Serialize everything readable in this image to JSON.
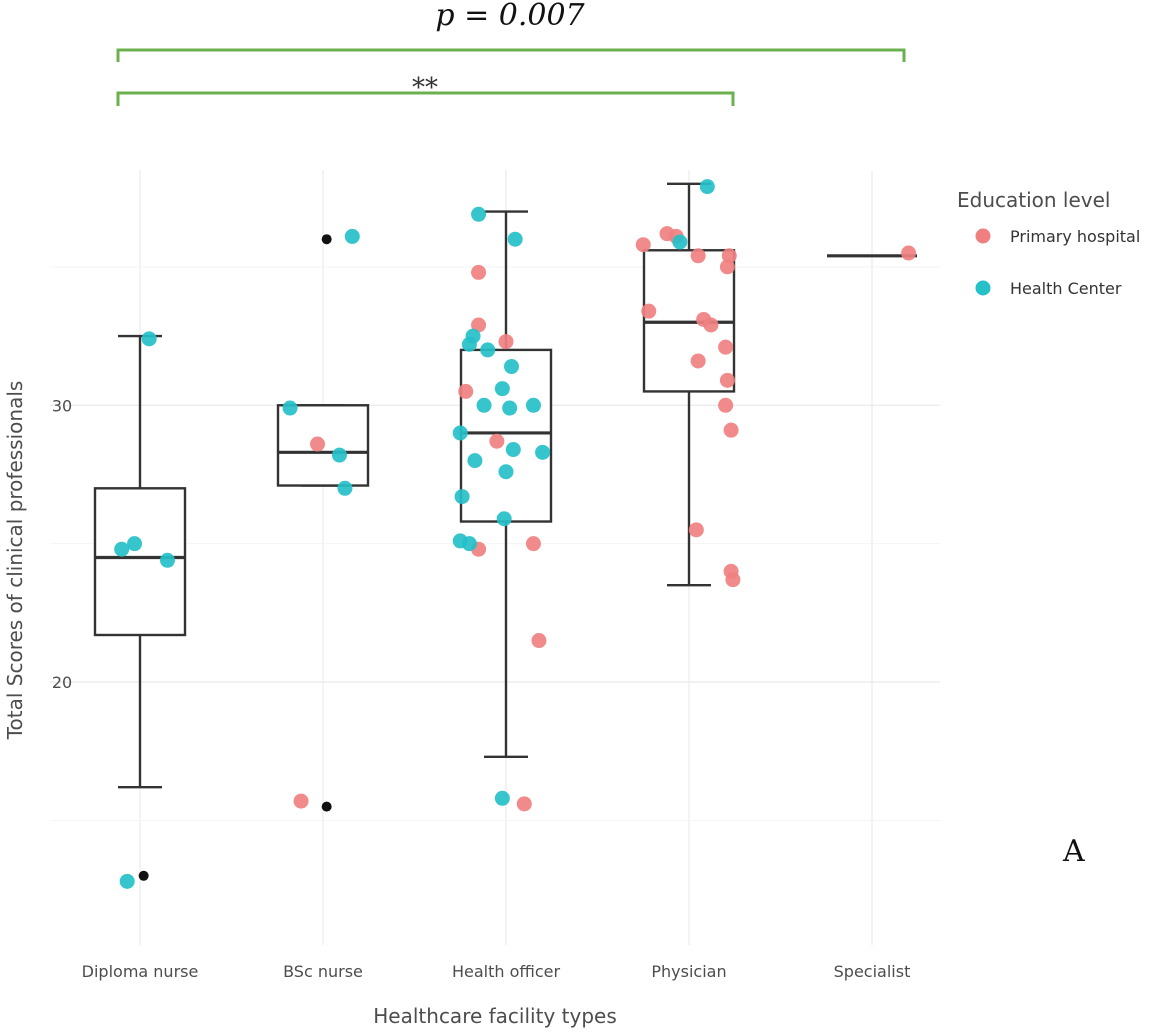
{
  "chart_data": {
    "type": "box",
    "title": "",
    "xlabel": "Healthcare facility types",
    "ylabel": "Total Scores of clinical professionals",
    "categories": [
      "Diploma nurse",
      "BSc nurse",
      "Health officer",
      "Physician",
      "Specialist"
    ],
    "ylim": [
      10.5,
      38.5
    ],
    "yticks": [
      20,
      30
    ],
    "grid": true,
    "legend": {
      "title": "Education level",
      "position": "right",
      "entries": [
        {
          "name": "Primary hospital",
          "color": "#f08080"
        },
        {
          "name": "Health Center",
          "color": "#25c0c8"
        }
      ]
    },
    "boxes": [
      {
        "category": "Diploma nurse",
        "min": 16.2,
        "q1": 21.7,
        "median": 24.5,
        "q3": 27.0,
        "max": 32.5
      },
      {
        "category": "BSc nurse",
        "min": 27.1,
        "q1": 27.1,
        "median": 28.3,
        "q3": 30.0,
        "max": 30.0
      },
      {
        "category": "Health officer",
        "min": 17.3,
        "q1": 25.8,
        "median": 29.0,
        "q3": 32.0,
        "max": 37.0
      },
      {
        "category": "Physician",
        "min": 23.5,
        "q1": 30.5,
        "median": 33.0,
        "q3": 35.6,
        "max": 38.0
      },
      {
        "category": "Specialist",
        "min": 35.4,
        "q1": 35.4,
        "median": 35.4,
        "q3": 35.4,
        "max": 35.4
      }
    ],
    "outliers": [
      {
        "category": "Diploma nurse",
        "y": 13.0
      },
      {
        "category": "BSc nurse",
        "y": 36.0
      },
      {
        "category": "BSc nurse",
        "y": 15.5
      }
    ],
    "series": [
      {
        "name": "Primary hospital",
        "color": "#f08080",
        "points": [
          {
            "category": "BSc nurse",
            "jitter": -0.03,
            "y": 28.6
          },
          {
            "category": "BSc nurse",
            "jitter": -0.12,
            "y": 15.7
          },
          {
            "category": "Health officer",
            "jitter": -0.15,
            "y": 34.8
          },
          {
            "category": "Health officer",
            "jitter": -0.15,
            "y": 32.9
          },
          {
            "category": "Health officer",
            "jitter": 0.0,
            "y": 32.3
          },
          {
            "category": "Health officer",
            "jitter": -0.22,
            "y": 30.5
          },
          {
            "category": "Health officer",
            "jitter": -0.05,
            "y": 28.7
          },
          {
            "category": "Health officer",
            "jitter": 0.15,
            "y": 25.0
          },
          {
            "category": "Health officer",
            "jitter": -0.15,
            "y": 24.8
          },
          {
            "category": "Health officer",
            "jitter": 0.18,
            "y": 21.5
          },
          {
            "category": "Health officer",
            "jitter": 0.1,
            "y": 15.6
          },
          {
            "category": "Physician",
            "jitter": -0.25,
            "y": 35.8
          },
          {
            "category": "Physician",
            "jitter": -0.12,
            "y": 36.2
          },
          {
            "category": "Physician",
            "jitter": -0.07,
            "y": 36.1
          },
          {
            "category": "Physician",
            "jitter": 0.05,
            "y": 35.4
          },
          {
            "category": "Physician",
            "jitter": 0.22,
            "y": 35.4
          },
          {
            "category": "Physician",
            "jitter": 0.21,
            "y": 35.0
          },
          {
            "category": "Physician",
            "jitter": -0.22,
            "y": 33.4
          },
          {
            "category": "Physician",
            "jitter": 0.08,
            "y": 33.1
          },
          {
            "category": "Physician",
            "jitter": 0.12,
            "y": 32.9
          },
          {
            "category": "Physician",
            "jitter": 0.2,
            "y": 32.1
          },
          {
            "category": "Physician",
            "jitter": 0.05,
            "y": 31.6
          },
          {
            "category": "Physician",
            "jitter": 0.21,
            "y": 30.9
          },
          {
            "category": "Physician",
            "jitter": 0.2,
            "y": 30.0
          },
          {
            "category": "Physician",
            "jitter": 0.23,
            "y": 29.1
          },
          {
            "category": "Physician",
            "jitter": 0.04,
            "y": 25.5
          },
          {
            "category": "Physician",
            "jitter": 0.23,
            "y": 24.0
          },
          {
            "category": "Physician",
            "jitter": 0.24,
            "y": 23.7
          },
          {
            "category": "Specialist",
            "jitter": 0.2,
            "y": 35.5
          }
        ]
      },
      {
        "name": "Health Center",
        "color": "#25c0c8",
        "points": [
          {
            "category": "Diploma nurse",
            "jitter": 0.05,
            "y": 32.4
          },
          {
            "category": "Diploma nurse",
            "jitter": -0.1,
            "y": 24.8
          },
          {
            "category": "Diploma nurse",
            "jitter": -0.03,
            "y": 25.0
          },
          {
            "category": "Diploma nurse",
            "jitter": 0.15,
            "y": 24.4
          },
          {
            "category": "Diploma nurse",
            "jitter": -0.07,
            "y": 12.8
          },
          {
            "category": "BSc nurse",
            "jitter": 0.16,
            "y": 36.1
          },
          {
            "category": "BSc nurse",
            "jitter": -0.18,
            "y": 29.9
          },
          {
            "category": "BSc nurse",
            "jitter": 0.09,
            "y": 28.2
          },
          {
            "category": "BSc nurse",
            "jitter": 0.12,
            "y": 27.0
          },
          {
            "category": "Health officer",
            "jitter": -0.15,
            "y": 36.9
          },
          {
            "category": "Health officer",
            "jitter": 0.05,
            "y": 36.0
          },
          {
            "category": "Health officer",
            "jitter": -0.18,
            "y": 32.5
          },
          {
            "category": "Health officer",
            "jitter": -0.2,
            "y": 32.2
          },
          {
            "category": "Health officer",
            "jitter": -0.1,
            "y": 32.0
          },
          {
            "category": "Health officer",
            "jitter": 0.03,
            "y": 31.4
          },
          {
            "category": "Health officer",
            "jitter": -0.02,
            "y": 30.6
          },
          {
            "category": "Health officer",
            "jitter": -0.12,
            "y": 30.0
          },
          {
            "category": "Health officer",
            "jitter": 0.02,
            "y": 29.9
          },
          {
            "category": "Health officer",
            "jitter": 0.15,
            "y": 30.0
          },
          {
            "category": "Health officer",
            "jitter": -0.25,
            "y": 29.0
          },
          {
            "category": "Health officer",
            "jitter": 0.04,
            "y": 28.4
          },
          {
            "category": "Health officer",
            "jitter": 0.2,
            "y": 28.3
          },
          {
            "category": "Health officer",
            "jitter": -0.17,
            "y": 28.0
          },
          {
            "category": "Health officer",
            "jitter": 0.0,
            "y": 27.6
          },
          {
            "category": "Health officer",
            "jitter": -0.24,
            "y": 26.7
          },
          {
            "category": "Health officer",
            "jitter": -0.01,
            "y": 25.9
          },
          {
            "category": "Health officer",
            "jitter": -0.25,
            "y": 25.1
          },
          {
            "category": "Health officer",
            "jitter": -0.2,
            "y": 25.0
          },
          {
            "category": "Health officer",
            "jitter": -0.02,
            "y": 15.8
          },
          {
            "category": "Physician",
            "jitter": 0.1,
            "y": 37.9
          },
          {
            "category": "Physician",
            "jitter": -0.05,
            "y": 35.9
          }
        ]
      }
    ]
  },
  "annotations": {
    "p_value": "p = 0.007",
    "significance": "**",
    "panel_label": "A",
    "bracket_color": "#6ab04c"
  }
}
